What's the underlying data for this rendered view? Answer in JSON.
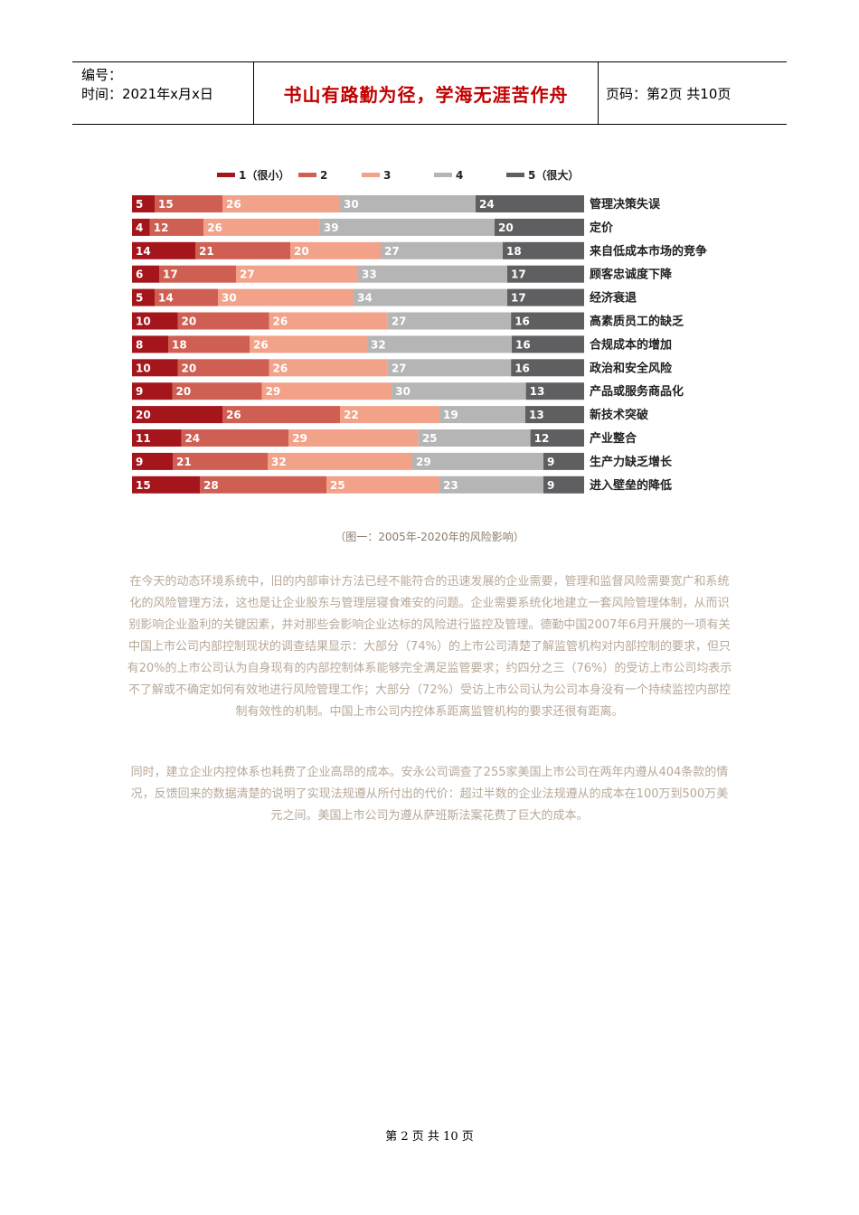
{
  "header": {
    "number_label": "编号：",
    "date_label": "时间：2021年x月x日",
    "motto": "书山有路勤为径，学海无涯苦作舟",
    "page_label": "页码：第2页  共10页"
  },
  "chart_data": {
    "type": "bar",
    "stacked": true,
    "orientation": "horizontal",
    "legend": [
      "1（很小）",
      "2",
      "3",
      "4",
      "5（很大）"
    ],
    "legend_position": "top",
    "colors": [
      "#a4161c",
      "#cf5f52",
      "#f2a288",
      "#b5b5b5",
      "#5f5f62"
    ],
    "categories": [
      "管理决策失误",
      "定价",
      "来自低成本市场的竞争",
      "顾客忠诚度下降",
      "经济衰退",
      "高素质员工的缺乏",
      "合规成本的增加",
      "政治和安全风险",
      "产品或服务商品化",
      "新技术突破",
      "产业整合",
      "生产力缺乏增长",
      "进入壁垒的降低"
    ],
    "series": [
      {
        "name": "1（很小）",
        "values": [
          5,
          4,
          14,
          6,
          5,
          10,
          8,
          10,
          9,
          20,
          11,
          9,
          15
        ]
      },
      {
        "name": "2",
        "values": [
          15,
          12,
          21,
          17,
          14,
          20,
          18,
          20,
          20,
          26,
          24,
          21,
          28
        ]
      },
      {
        "name": "3",
        "values": [
          26,
          26,
          20,
          27,
          30,
          26,
          26,
          26,
          29,
          22,
          29,
          32,
          25
        ]
      },
      {
        "name": "4",
        "values": [
          30,
          39,
          27,
          33,
          34,
          27,
          32,
          27,
          30,
          19,
          25,
          29,
          23
        ]
      },
      {
        "name": "5（很大）",
        "values": [
          24,
          20,
          18,
          17,
          17,
          16,
          16,
          16,
          13,
          13,
          12,
          9,
          9
        ]
      }
    ]
  },
  "caption": "（图一：2005年-2020年的风险影响）",
  "paragraphs": [
    "在今天的动态环境系统中，旧的内部审计方法已经不能符合的迅速发展的企业需要，管理和监督风险需要宽广和系统化的风险管理方法，这也是让企业股东与管理层寝食难安的问题。企业需要系统化地建立一套风险管理体制，从而识别影响企业盈利的关键因素，并对那些会影响企业达标的风险进行监控及管理。德勤中国2007年6月开展的一项有关中国上市公司内部控制现状的调查结果显示：大部分（74%）的上市公司清楚了解监管机构对内部控制的要求，但只有20%的上市公司认为自身现有的内部控制体系能够完全满足监管要求；约四分之三（76%）的受访上市公司均表示不了解或不确定如何有效地进行风险管理工作；大部分（72%）受访上市公司认为公司本身没有一个持续监控内部控制有效性的机制。中国上市公司内控体系距离监管机构的要求还很有距离。",
    "同时，建立企业内控体系也耗费了企业高昂的成本。安永公司调查了255家美国上市公司在两年内遵从404条款的情况，反馈回来的数据清楚的说明了实现法规遵从所付出的代价：超过半数的企业法规遵从的成本在100万到500万美元之间。美国上市公司为遵从萨班斯法案花费了巨大的成本。"
  ],
  "footer": "第 2 页 共 10 页"
}
